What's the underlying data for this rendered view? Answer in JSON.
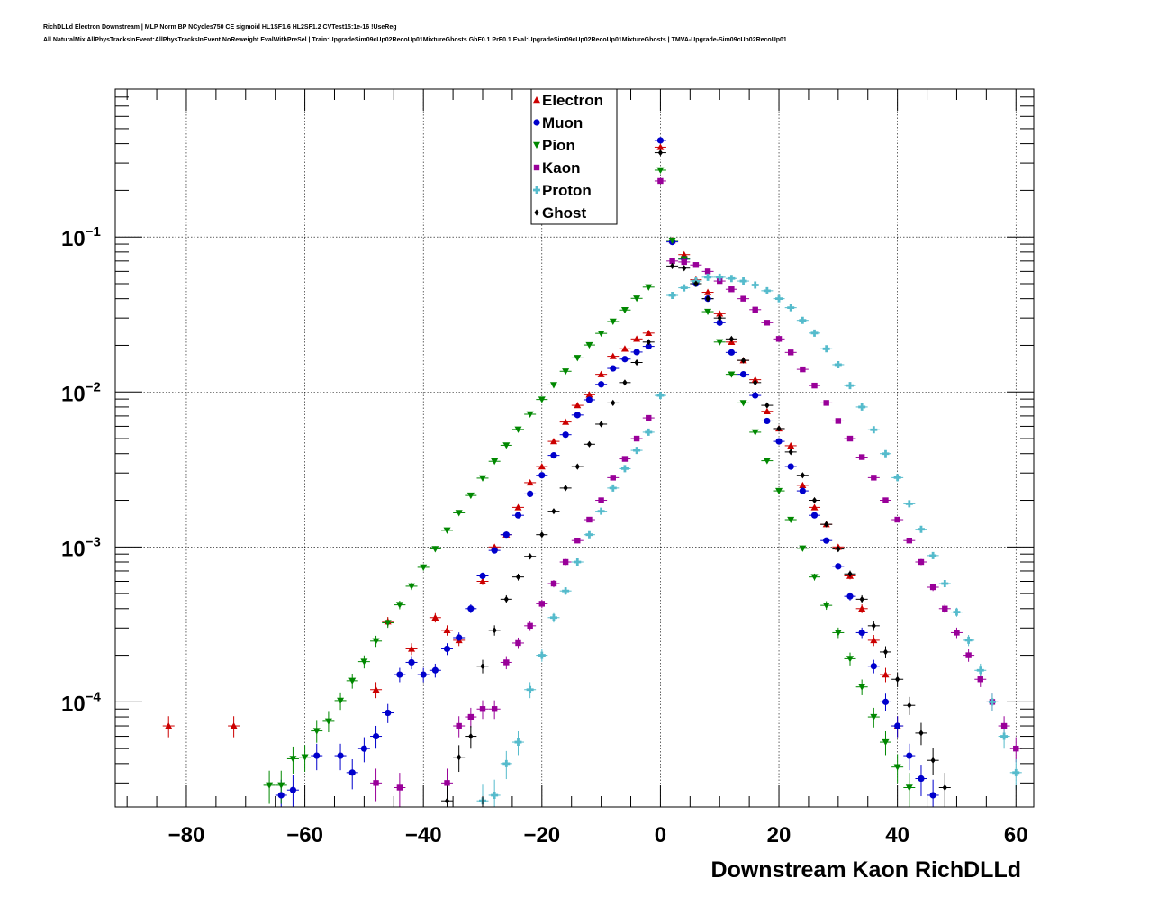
{
  "header": {
    "line1": "RichDLLd Electron Downstream | MLP Norm BP NCycles750 CE sigmoid HL1SF1.6 HL2SF1.2 CVTest15:1e-16 !UseReg",
    "line2": "All NaturalMix AllPhysTracksInEvent:AllPhysTracksInEvent NoReweight EvalWithPreSel | Train:UpgradeSim09cUp02RecoUp01MixtureGhosts GhF0.1 PrF0.1 Eval:UpgradeSim09cUp02RecoUp01MixtureGhosts | TMVA-Upgrade-Sim09cUp02RecoUp01"
  },
  "chart_data": {
    "type": "scatter",
    "title": "",
    "xlabel": "Downstream Kaon RichDLLd",
    "ylabel": "",
    "xlim": [
      -92,
      63
    ],
    "ylim": [
      2.1e-05,
      0.9
    ],
    "yscale": "log",
    "grid": true,
    "legend_position": "top-center",
    "x_ticks": [
      {
        "value": -80,
        "label": "−80"
      },
      {
        "value": -60,
        "label": "−60"
      },
      {
        "value": -40,
        "label": "−40"
      },
      {
        "value": -20,
        "label": "−20"
      },
      {
        "value": 0,
        "label": "0"
      },
      {
        "value": 20,
        "label": "20"
      },
      {
        "value": 40,
        "label": "40"
      },
      {
        "value": 60,
        "label": "60"
      }
    ],
    "y_ticks": [
      {
        "value": 0.1,
        "base": "10",
        "exp": "−1"
      },
      {
        "value": 0.01,
        "base": "10",
        "exp": "−2"
      },
      {
        "value": 0.001,
        "base": "10",
        "exp": "−3"
      },
      {
        "value": 0.0001,
        "base": "10",
        "exp": "−4"
      }
    ],
    "series": [
      {
        "name": "Electron",
        "color": "#cc0000",
        "marker": "triangle-up",
        "points": [
          [
            -83,
            7e-05
          ],
          [
            -72,
            7e-05
          ],
          [
            -48,
            0.00012
          ],
          [
            -46,
            0.00033
          ],
          [
            -42,
            0.00022
          ],
          [
            -38,
            0.00035
          ],
          [
            -36,
            0.00029
          ],
          [
            -34,
            0.00025
          ],
          [
            -30,
            0.0006
          ],
          [
            -28,
            0.001
          ],
          [
            -26,
            0.0012
          ],
          [
            -24,
            0.0018
          ],
          [
            -22,
            0.0026
          ],
          [
            -20,
            0.0033
          ],
          [
            -18,
            0.0048
          ],
          [
            -16,
            0.0064
          ],
          [
            -14,
            0.0082
          ],
          [
            -12,
            0.0096
          ],
          [
            -10,
            0.013
          ],
          [
            -8,
            0.017
          ],
          [
            -6,
            0.019
          ],
          [
            -4,
            0.022
          ],
          [
            -2,
            0.024
          ],
          [
            0,
            0.38
          ],
          [
            2,
            0.095
          ],
          [
            4,
            0.077
          ],
          [
            6,
            0.053
          ],
          [
            8,
            0.044
          ],
          [
            10,
            0.032
          ],
          [
            12,
            0.021
          ],
          [
            14,
            0.016
          ],
          [
            16,
            0.012
          ],
          [
            18,
            0.0075
          ],
          [
            20,
            0.0058
          ],
          [
            22,
            0.0045
          ],
          [
            24,
            0.0025
          ],
          [
            26,
            0.0018
          ],
          [
            28,
            0.0014
          ],
          [
            30,
            0.001
          ],
          [
            32,
            0.00065
          ],
          [
            34,
            0.0004
          ],
          [
            36,
            0.00025
          ],
          [
            38,
            0.00015
          ],
          [
            40,
            7e-05
          ]
        ]
      },
      {
        "name": "Muon",
        "color": "#0000cc",
        "marker": "circle",
        "points": [
          [
            -64,
            2.5e-05
          ],
          [
            -62,
            2.7e-05
          ],
          [
            -58,
            4.5e-05
          ],
          [
            -54,
            4.5e-05
          ],
          [
            -52,
            3.5e-05
          ],
          [
            -50,
            5e-05
          ],
          [
            -48,
            6e-05
          ],
          [
            -46,
            8.5e-05
          ],
          [
            -44,
            0.00015
          ],
          [
            -42,
            0.00018
          ],
          [
            -40,
            0.00015
          ],
          [
            -38,
            0.00016
          ],
          [
            -36,
            0.00022
          ],
          [
            -34,
            0.00026
          ],
          [
            -32,
            0.0004
          ],
          [
            -30,
            0.00065
          ],
          [
            -28,
            0.00095
          ],
          [
            -26,
            0.0012
          ],
          [
            -24,
            0.0016
          ],
          [
            -22,
            0.0022
          ],
          [
            -20,
            0.0029
          ],
          [
            -18,
            0.0039
          ],
          [
            -16,
            0.0053
          ],
          [
            -14,
            0.0071
          ],
          [
            -12,
            0.0089
          ],
          [
            -10,
            0.0112
          ],
          [
            -8,
            0.0142
          ],
          [
            -6,
            0.0163
          ],
          [
            -4,
            0.0181
          ],
          [
            -2,
            0.0197
          ],
          [
            0,
            0.42
          ],
          [
            2,
            0.093
          ],
          [
            4,
            0.072
          ],
          [
            6,
            0.05
          ],
          [
            8,
            0.04
          ],
          [
            10,
            0.028
          ],
          [
            12,
            0.018
          ],
          [
            14,
            0.013
          ],
          [
            16,
            0.0095
          ],
          [
            18,
            0.0065
          ],
          [
            20,
            0.0048
          ],
          [
            22,
            0.0033
          ],
          [
            24,
            0.0023
          ],
          [
            26,
            0.0016
          ],
          [
            28,
            0.0011
          ],
          [
            30,
            0.00075
          ],
          [
            32,
            0.00048
          ],
          [
            34,
            0.00028
          ],
          [
            36,
            0.00017
          ],
          [
            38,
            0.0001
          ],
          [
            40,
            7e-05
          ],
          [
            42,
            4.5e-05
          ],
          [
            44,
            3.2e-05
          ],
          [
            46,
            2.5e-05
          ]
        ]
      },
      {
        "name": "Pion",
        "color": "#008800",
        "marker": "triangle-down",
        "points": [
          [
            -66,
            2.9e-05
          ],
          [
            -64,
            2.9e-05
          ],
          [
            -62,
            4.3e-05
          ],
          [
            -60,
            4.4e-05
          ],
          [
            -58,
            6.5e-05
          ],
          [
            -56,
            7.5e-05
          ],
          [
            -54,
            0.000102
          ],
          [
            -52,
            0.000137
          ],
          [
            -50,
            0.000182
          ],
          [
            -48,
            0.000247
          ],
          [
            -46,
            0.000324
          ],
          [
            -44,
            0.000423
          ],
          [
            -42,
            0.000558
          ],
          [
            -40,
            0.000739
          ],
          [
            -38,
            0.000972
          ],
          [
            -36,
            0.00128
          ],
          [
            -34,
            0.00166
          ],
          [
            -32,
            0.00215
          ],
          [
            -30,
            0.00278
          ],
          [
            -28,
            0.00357
          ],
          [
            -26,
            0.00453
          ],
          [
            -24,
            0.00573
          ],
          [
            -22,
            0.00718
          ],
          [
            -20,
            0.00894
          ],
          [
            -18,
            0.0111
          ],
          [
            -16,
            0.0136
          ],
          [
            -14,
            0.0166
          ],
          [
            -12,
            0.0201
          ],
          [
            -10,
            0.0239
          ],
          [
            -8,
            0.0285
          ],
          [
            -6,
            0.0338
          ],
          [
            -4,
            0.0402
          ],
          [
            -2,
            0.0475
          ],
          [
            0,
            0.27
          ],
          [
            2,
            0.095
          ],
          [
            4,
            0.072
          ],
          [
            6,
            0.05
          ],
          [
            8,
            0.033
          ],
          [
            10,
            0.021
          ],
          [
            12,
            0.013
          ],
          [
            14,
            0.0085
          ],
          [
            16,
            0.0055
          ],
          [
            18,
            0.0036
          ],
          [
            20,
            0.0023
          ],
          [
            22,
            0.0015
          ],
          [
            24,
            0.00098
          ],
          [
            26,
            0.00064
          ],
          [
            28,
            0.00042
          ],
          [
            30,
            0.00028
          ],
          [
            32,
            0.00019
          ],
          [
            34,
            0.000125
          ],
          [
            36,
            8e-05
          ],
          [
            38,
            5.5e-05
          ],
          [
            40,
            3.8e-05
          ],
          [
            42,
            2.8e-05
          ]
        ]
      },
      {
        "name": "Kaon",
        "color": "#990099",
        "marker": "square",
        "points": [
          [
            -48,
            3e-05
          ],
          [
            -44,
            2.8e-05
          ],
          [
            -36,
            3e-05
          ],
          [
            -34,
            7e-05
          ],
          [
            -32,
            8e-05
          ],
          [
            -30,
            9e-05
          ],
          [
            -28,
            9e-05
          ],
          [
            -26,
            0.00018
          ],
          [
            -24,
            0.00024
          ],
          [
            -22,
            0.00031
          ],
          [
            -20,
            0.00043
          ],
          [
            -18,
            0.00058
          ],
          [
            -16,
            0.0008
          ],
          [
            -14,
            0.0011
          ],
          [
            -12,
            0.0015
          ],
          [
            -10,
            0.002
          ],
          [
            -8,
            0.0028
          ],
          [
            -6,
            0.0037
          ],
          [
            -4,
            0.005
          ],
          [
            -2,
            0.0068
          ],
          [
            0,
            0.23
          ],
          [
            2,
            0.07
          ],
          [
            4,
            0.069
          ],
          [
            6,
            0.066
          ],
          [
            8,
            0.06
          ],
          [
            10,
            0.052
          ],
          [
            12,
            0.046
          ],
          [
            14,
            0.04
          ],
          [
            16,
            0.034
          ],
          [
            18,
            0.028
          ],
          [
            20,
            0.022
          ],
          [
            22,
            0.018
          ],
          [
            24,
            0.014
          ],
          [
            26,
            0.011
          ],
          [
            28,
            0.0085
          ],
          [
            30,
            0.0065
          ],
          [
            32,
            0.005
          ],
          [
            34,
            0.0038
          ],
          [
            36,
            0.0028
          ],
          [
            38,
            0.002
          ],
          [
            40,
            0.0015
          ],
          [
            42,
            0.0011
          ],
          [
            44,
            0.0008
          ],
          [
            46,
            0.00055
          ],
          [
            48,
            0.0004
          ],
          [
            50,
            0.00028
          ],
          [
            52,
            0.0002
          ],
          [
            54,
            0.00014
          ],
          [
            56,
            0.0001
          ],
          [
            58,
            7e-05
          ],
          [
            60,
            5e-05
          ]
        ]
      },
      {
        "name": "Proton",
        "color": "#55bbcc",
        "marker": "cross",
        "points": [
          [
            -30,
            2.3e-05
          ],
          [
            -28,
            2.5e-05
          ],
          [
            -26,
            4e-05
          ],
          [
            -24,
            5.5e-05
          ],
          [
            -22,
            0.00012
          ],
          [
            -20,
            0.0002
          ],
          [
            -18,
            0.00035
          ],
          [
            -16,
            0.00052
          ],
          [
            -14,
            0.0008
          ],
          [
            -12,
            0.0012
          ],
          [
            -10,
            0.0017
          ],
          [
            -8,
            0.0024
          ],
          [
            -6,
            0.0032
          ],
          [
            -4,
            0.0042
          ],
          [
            -2,
            0.0055
          ],
          [
            0,
            0.0095
          ],
          [
            2,
            0.042
          ],
          [
            4,
            0.047
          ],
          [
            6,
            0.052
          ],
          [
            8,
            0.055
          ],
          [
            10,
            0.055
          ],
          [
            12,
            0.054
          ],
          [
            14,
            0.052
          ],
          [
            16,
            0.049
          ],
          [
            18,
            0.045
          ],
          [
            20,
            0.04
          ],
          [
            22,
            0.035
          ],
          [
            24,
            0.029
          ],
          [
            26,
            0.024
          ],
          [
            28,
            0.019
          ],
          [
            30,
            0.015
          ],
          [
            32,
            0.011
          ],
          [
            34,
            0.008
          ],
          [
            36,
            0.0057
          ],
          [
            38,
            0.004
          ],
          [
            40,
            0.0028
          ],
          [
            42,
            0.0019
          ],
          [
            44,
            0.0013
          ],
          [
            46,
            0.00088
          ],
          [
            48,
            0.00058
          ],
          [
            50,
            0.00038
          ],
          [
            52,
            0.00025
          ],
          [
            54,
            0.00016
          ],
          [
            56,
            0.0001
          ],
          [
            58,
            6e-05
          ],
          [
            60,
            3.5e-05
          ]
        ]
      },
      {
        "name": "Ghost",
        "color": "#000000",
        "marker": "diamond",
        "points": [
          [
            -36,
            2.3e-05
          ],
          [
            -34,
            4.4e-05
          ],
          [
            -32,
            6e-05
          ],
          [
            -30,
            0.00017
          ],
          [
            -28,
            0.00029
          ],
          [
            -26,
            0.00046
          ],
          [
            -24,
            0.00064
          ],
          [
            -22,
            0.00087
          ],
          [
            -20,
            0.0012
          ],
          [
            -18,
            0.0017
          ],
          [
            -16,
            0.0024
          ],
          [
            -14,
            0.0033
          ],
          [
            -12,
            0.0046
          ],
          [
            -10,
            0.0062
          ],
          [
            -8,
            0.0085
          ],
          [
            -6,
            0.0115
          ],
          [
            -4,
            0.0155
          ],
          [
            -2,
            0.021
          ],
          [
            0,
            0.35
          ],
          [
            2,
            0.065
          ],
          [
            4,
            0.063
          ],
          [
            6,
            0.05
          ],
          [
            8,
            0.04
          ],
          [
            10,
            0.03
          ],
          [
            12,
            0.022
          ],
          [
            14,
            0.016
          ],
          [
            16,
            0.0115
          ],
          [
            18,
            0.0082
          ],
          [
            20,
            0.0058
          ],
          [
            22,
            0.0041
          ],
          [
            24,
            0.0029
          ],
          [
            26,
            0.002
          ],
          [
            28,
            0.0014
          ],
          [
            30,
            0.00097
          ],
          [
            32,
            0.00067
          ],
          [
            34,
            0.00046
          ],
          [
            36,
            0.00031
          ],
          [
            38,
            0.00021
          ],
          [
            40,
            0.00014
          ],
          [
            42,
            9.5e-05
          ],
          [
            44,
            6.3e-05
          ],
          [
            46,
            4.2e-05
          ],
          [
            48,
            2.8e-05
          ]
        ]
      }
    ]
  }
}
